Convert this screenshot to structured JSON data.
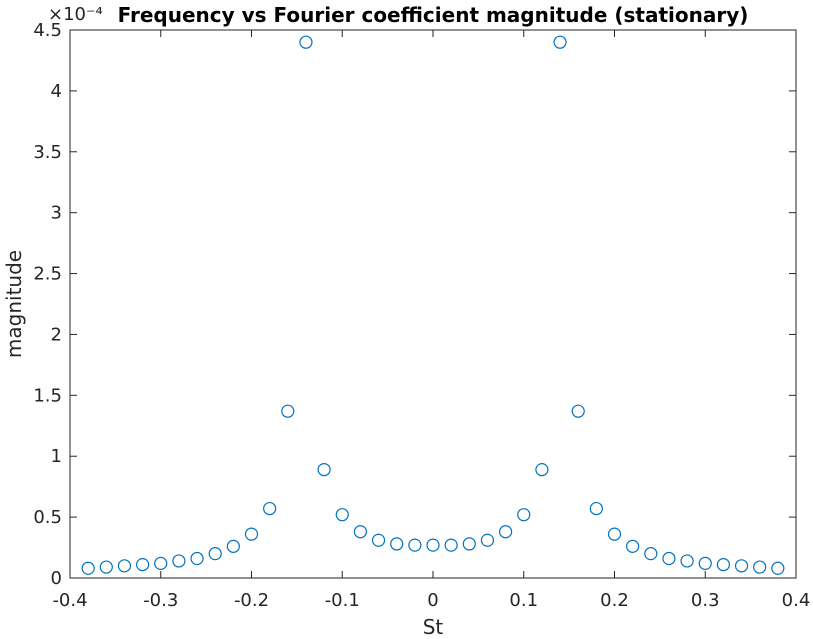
{
  "chart_data": {
    "type": "scatter",
    "title": "Frequency vs Fourier coefficient magnitude (stationary)",
    "xlabel": "St",
    "ylabel": "magnitude",
    "y_exponent_label": "×10⁻⁴",
    "xlim": [
      -0.4,
      0.4
    ],
    "ylim": [
      0,
      4.5
    ],
    "x_ticks": [
      -0.4,
      -0.3,
      -0.2,
      -0.1,
      0,
      0.1,
      0.2,
      0.3,
      0.4
    ],
    "x_tick_labels": [
      "-0.4",
      "-0.3",
      "-0.2",
      "-0.1",
      "0",
      "0.1",
      "0.2",
      "0.3",
      "0.4"
    ],
    "y_ticks": [
      0,
      0.5,
      1,
      1.5,
      2,
      2.5,
      3,
      3.5,
      4,
      4.5
    ],
    "y_tick_labels": [
      "0",
      "0.5",
      "1",
      "1.5",
      "2",
      "2.5",
      "3",
      "3.5",
      "4",
      "4.5"
    ],
    "grid": false,
    "marker": "open-circle",
    "marker_color": "#0072BD",
    "axis_color": "#262626",
    "series": [
      {
        "x": [
          -0.38,
          -0.36,
          -0.34,
          -0.32,
          -0.3,
          -0.28,
          -0.26,
          -0.24,
          -0.22,
          -0.2,
          -0.18,
          -0.16,
          -0.14,
          -0.12,
          -0.1,
          -0.08,
          -0.06,
          -0.04,
          -0.02,
          0.0,
          0.02,
          0.04,
          0.06,
          0.08,
          0.1,
          0.12,
          0.14,
          0.16,
          0.18,
          0.2,
          0.22,
          0.24,
          0.26,
          0.28,
          0.3,
          0.32,
          0.34,
          0.36,
          0.38
        ],
        "y": [
          0.08,
          0.09,
          0.1,
          0.11,
          0.12,
          0.14,
          0.16,
          0.2,
          0.26,
          0.36,
          0.57,
          1.37,
          4.4,
          0.89,
          0.52,
          0.38,
          0.31,
          0.28,
          0.27,
          0.27,
          0.27,
          0.28,
          0.31,
          0.38,
          0.52,
          0.89,
          4.4,
          1.37,
          0.57,
          0.36,
          0.26,
          0.2,
          0.16,
          0.14,
          0.12,
          0.11,
          0.1,
          0.09,
          0.08
        ]
      }
    ]
  }
}
